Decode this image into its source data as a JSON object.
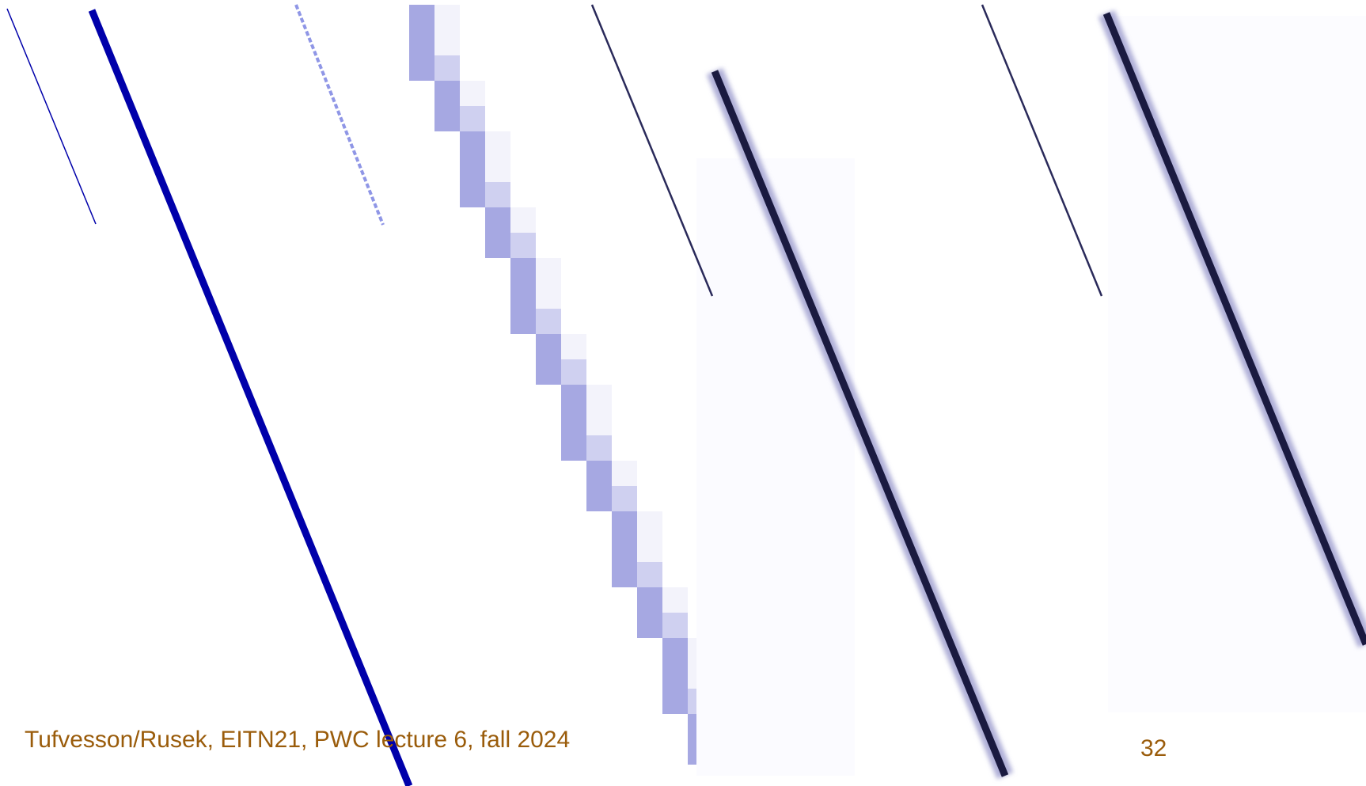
{
  "footer": {
    "text": "Tufvesson/Rusek, EITN21, PWC lecture 6, fall 2024",
    "page_number": "32"
  }
}
